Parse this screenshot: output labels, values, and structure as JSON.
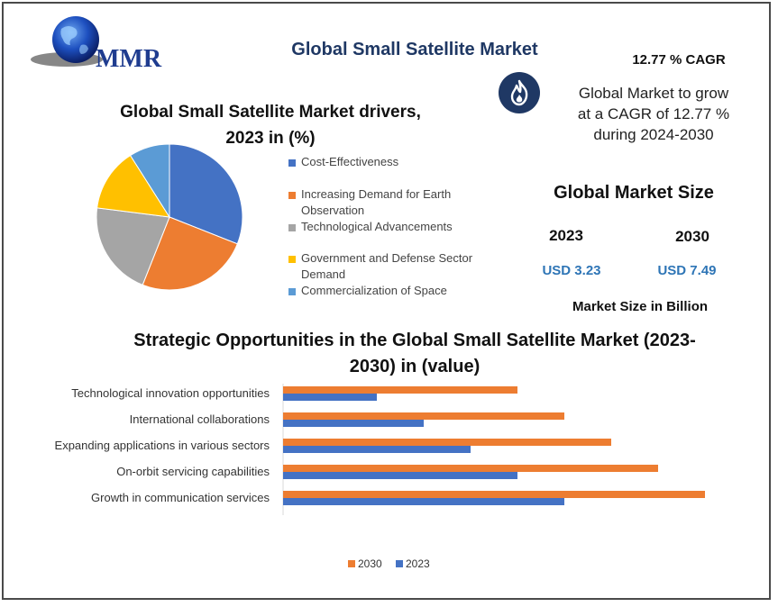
{
  "logo": {
    "text": "MMR"
  },
  "header": {
    "title": "Global Small Satellite Market",
    "cagr_label": "12.77 % CAGR",
    "cagr_lines": [
      "Global Market to grow",
      "at a CAGR of 12.77 %",
      "during 2024-2030"
    ],
    "icon": "flame-icon"
  },
  "market_size": {
    "title": "Global Market Size",
    "year_a": "2023",
    "year_b": "2030",
    "value_a": "USD 3.23",
    "value_b": "USD 7.49",
    "note": "Market Size in Billion"
  },
  "colors": {
    "blue": "#4472c4",
    "orange": "#ed7d31",
    "gray": "#a5a5a5",
    "yellow": "#ffc000",
    "light_blue": "#5b9bd5",
    "navy": "#1f3864"
  },
  "chart_data": [
    {
      "type": "pie",
      "title_lines": [
        "Global Small Satellite Market drivers,",
        "2023 in (%)"
      ],
      "slices": [
        {
          "label": "Cost-Effectiveness",
          "value": 31,
          "color": "#4472c4"
        },
        {
          "label": "Increasing Demand for Earth Observation",
          "value": 25,
          "color": "#ed7d31"
        },
        {
          "label": "Technological Advancements",
          "value": 21,
          "color": "#a5a5a5"
        },
        {
          "label": "Government and Defense Sector Demand",
          "value": 14,
          "color": "#ffc000"
        },
        {
          "label": "Commercialization of Space",
          "value": 9,
          "color": "#5b9bd5"
        }
      ],
      "legend_position": "right"
    },
    {
      "type": "bar",
      "orientation": "horizontal",
      "title_lines": [
        "Strategic Opportunities in the Global Small Satellite Market (2023-",
        "2030) in (value)"
      ],
      "categories": [
        "Technological innovation opportunities",
        "International collaborations",
        "Expanding applications in various sectors",
        "On-orbit servicing capabilities",
        "Growth in communication services"
      ],
      "series": [
        {
          "name": "2030",
          "values": [
            5,
            6,
            7,
            8,
            9
          ],
          "color": "#ed7d31"
        },
        {
          "name": "2023",
          "values": [
            2,
            3,
            4,
            5,
            6
          ],
          "color": "#4472c4"
        }
      ],
      "xlim": [
        0,
        9
      ],
      "legend_position": "bottom"
    }
  ]
}
